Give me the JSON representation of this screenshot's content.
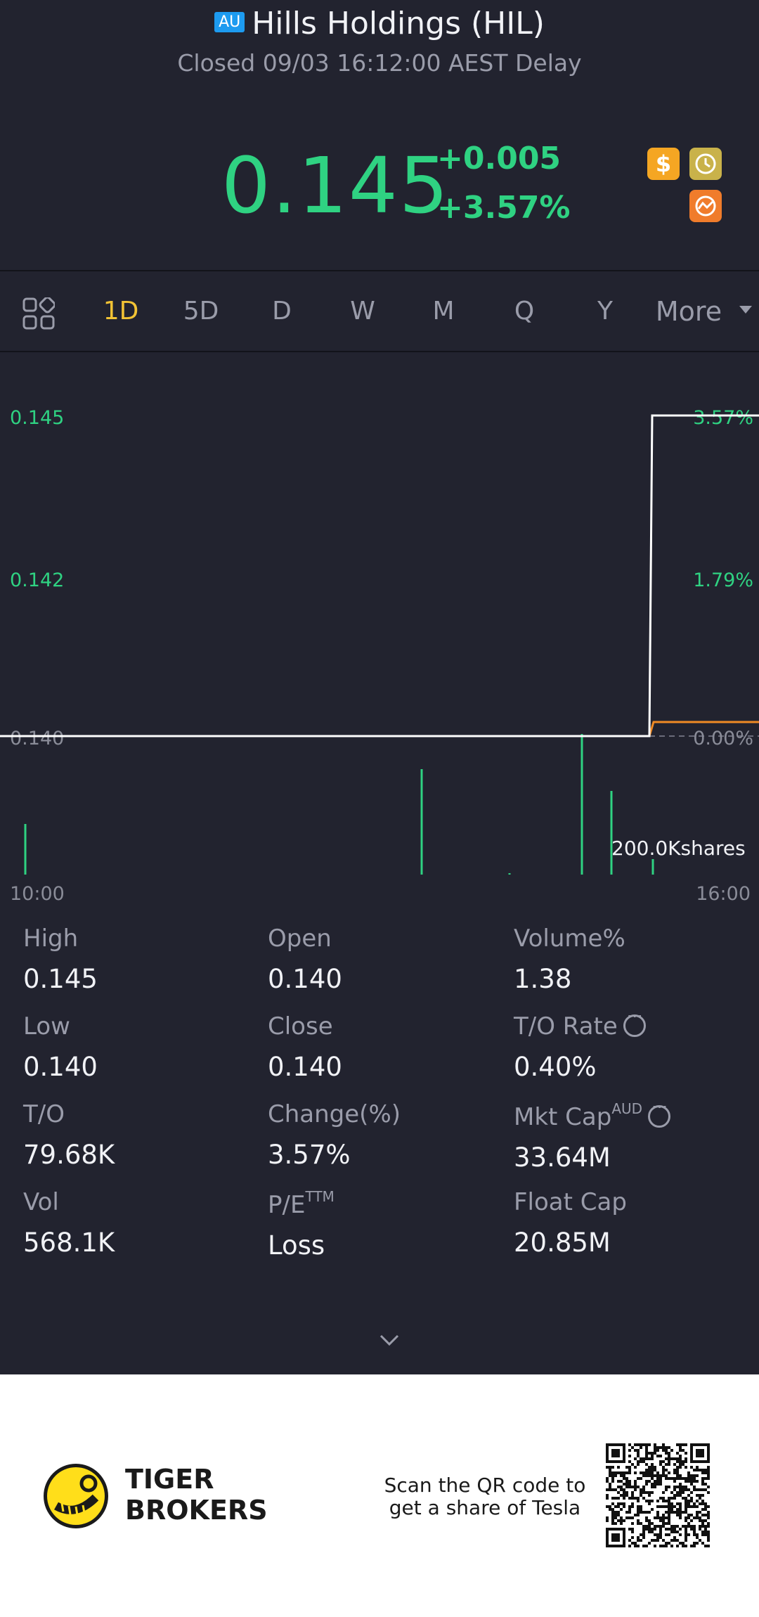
{
  "header": {
    "exchange_badge": "AU",
    "title": "Hills Holdings (HIL)",
    "subtitle": "Closed 09/03 16:12:00 AEST Delay",
    "price": "0.145",
    "change_abs": "+0.005",
    "change_pct": "+3.57%",
    "icons": [
      "dollar-icon",
      "history-icon",
      "chart-badge-icon"
    ]
  },
  "tabs": {
    "items": [
      {
        "label": "1D",
        "active": true
      },
      {
        "label": "5D"
      },
      {
        "label": "D"
      },
      {
        "label": "W"
      },
      {
        "label": "M"
      },
      {
        "label": "Q"
      },
      {
        "label": "Y"
      },
      {
        "label": "More"
      }
    ]
  },
  "chart": {
    "y_left": [
      "0.145",
      "0.142",
      "0.140"
    ],
    "y_right": [
      "3.57%",
      "1.79%",
      "0.00%"
    ],
    "x_left": "10:00",
    "x_right": "16:00",
    "volume_label": "200.0Kshares",
    "colors": {
      "price_line": "#ffffff",
      "avg_line": "#f08a24",
      "up": "#2fd282"
    }
  },
  "chart_data": {
    "type": "line",
    "title": "",
    "x": [
      "10:00",
      "14:30",
      "16:00"
    ],
    "series": [
      {
        "name": "",
        "values": [
          0.14,
          0.14,
          0.145
        ]
      }
    ],
    "ylim": [
      0.14,
      0.145
    ],
    "volume_scale_label": "200.0Kshares",
    "xlabel": "",
    "ylabel": ""
  },
  "stats": {
    "items": [
      {
        "label": "High",
        "value": "0.145"
      },
      {
        "label": "Open",
        "value": "0.140"
      },
      {
        "label": "Volume%",
        "value": "1.38"
      },
      {
        "label": "Low",
        "value": "0.140"
      },
      {
        "label": "Close",
        "value": "0.140"
      },
      {
        "label": "T/O Rate",
        "value": "0.40%"
      },
      {
        "label": "T/O",
        "value": "79.68K"
      },
      {
        "label": "Change(%)",
        "value": "3.57%"
      },
      {
        "label": "Mkt Cap",
        "sup": "AUD",
        "value": "33.64M"
      },
      {
        "label": "Vol",
        "value": "568.1K"
      },
      {
        "label": "P/E",
        "sup": "TTM",
        "value": "Loss"
      },
      {
        "label": "Float Cap",
        "value": "20.85M"
      }
    ]
  },
  "footer": {
    "brand_line1": "TIGER",
    "brand_line2": "BROKERS",
    "scan_line1": "Scan the QR code to",
    "scan_line2": "get a share of Tesla"
  }
}
